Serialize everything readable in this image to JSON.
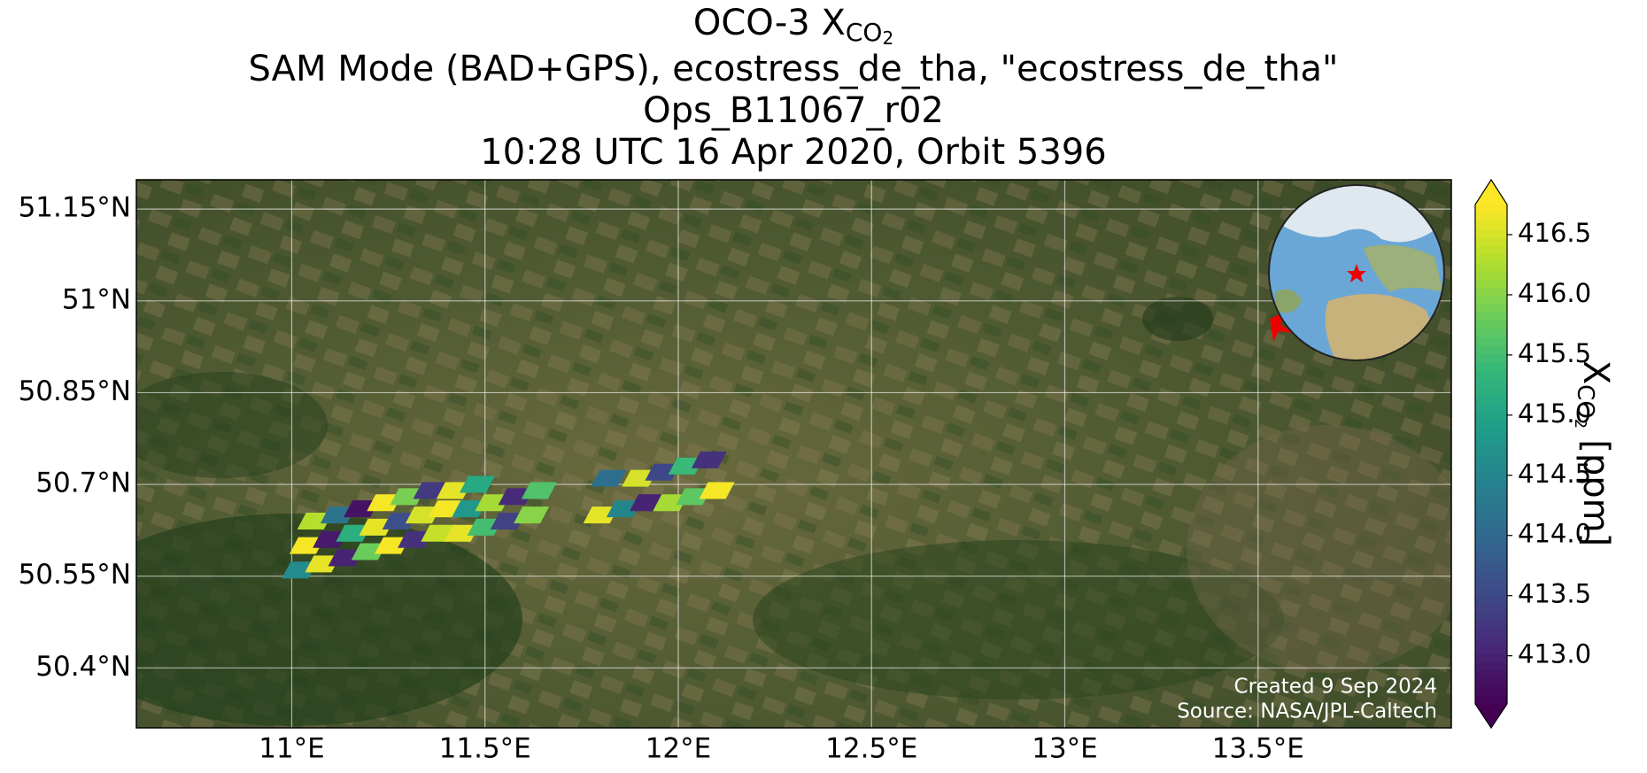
{
  "chart_data": {
    "type": "swath-map",
    "title": {
      "text": "OCO-3 X",
      "subscript": "CO",
      "subsubscript": "2"
    },
    "subtitle_lines": [
      "SAM Mode (BAD+GPS), ecostress_de_tha, \"ecostress_de_tha\"",
      "Ops_B11067_r02",
      "10:28 UTC 16 Apr 2020, Orbit 5396"
    ],
    "xlim": [
      10.598,
      14.0
    ],
    "ylim": [
      50.302,
      51.198
    ],
    "xticks": [
      {
        "value": 11.0,
        "label": "11°E"
      },
      {
        "value": 11.5,
        "label": "11.5°E"
      },
      {
        "value": 12.0,
        "label": "12°E"
      },
      {
        "value": 12.5,
        "label": "12.5°E"
      },
      {
        "value": 13.0,
        "label": "13°E"
      },
      {
        "value": 13.5,
        "label": "13.5°E"
      }
    ],
    "yticks": [
      {
        "value": 51.15,
        "label": "51.15°N"
      },
      {
        "value": 51.0,
        "label": "51°N"
      },
      {
        "value": 50.85,
        "label": "50.85°N"
      },
      {
        "value": 50.7,
        "label": "50.7°N"
      },
      {
        "value": 50.55,
        "label": "50.55°N"
      },
      {
        "value": 50.4,
        "label": "50.4°N"
      }
    ],
    "grid": true,
    "x": [
      11.02,
      11.08,
      11.14,
      11.2,
      11.26,
      11.32,
      11.38,
      11.44,
      11.5,
      11.56,
      11.62,
      11.04,
      11.1,
      11.16,
      11.22,
      11.28,
      11.34,
      11.4,
      11.46,
      11.52,
      11.58,
      11.64,
      11.06,
      11.12,
      11.18,
      11.24,
      11.3,
      11.36,
      11.42,
      11.48,
      11.8,
      11.86,
      11.92,
      11.98,
      12.04,
      12.1,
      11.82,
      11.9,
      11.96,
      12.02,
      12.08
    ],
    "y": [
      50.56,
      50.57,
      50.58,
      50.59,
      50.6,
      50.61,
      50.62,
      50.62,
      50.63,
      50.64,
      50.65,
      50.6,
      50.61,
      50.62,
      50.63,
      50.64,
      50.65,
      50.66,
      50.66,
      50.67,
      50.68,
      50.69,
      50.64,
      50.65,
      50.66,
      50.67,
      50.68,
      50.69,
      50.69,
      50.7,
      50.65,
      50.66,
      50.67,
      50.67,
      50.68,
      50.69,
      50.71,
      50.71,
      50.72,
      50.73,
      50.74
    ],
    "values": [
      414.6,
      416.6,
      413.0,
      415.8,
      416.7,
      413.2,
      416.4,
      416.6,
      415.5,
      413.4,
      416.0,
      416.7,
      412.9,
      415.2,
      416.6,
      413.6,
      416.5,
      416.7,
      414.8,
      416.2,
      413.1,
      415.6,
      416.3,
      414.2,
      412.8,
      416.7,
      415.9,
      413.3,
      416.6,
      415.1,
      416.6,
      414.5,
      413.0,
      416.2,
      415.7,
      416.7,
      414.1,
      416.5,
      413.5,
      415.4,
      413.2
    ],
    "colorbar": {
      "label": "X",
      "label_subscript": "CO",
      "label_subsubscript": "2",
      "label_unit": "[ppm]",
      "clim": [
        412.6,
        416.75
      ],
      "ticks": [
        {
          "value": 413.0,
          "label": "413.0"
        },
        {
          "value": 413.5,
          "label": "413.5"
        },
        {
          "value": 414.0,
          "label": "414.0"
        },
        {
          "value": 414.5,
          "label": "414.5"
        },
        {
          "value": 415.0,
          "label": "415.0"
        },
        {
          "value": 415.5,
          "label": "415.5"
        },
        {
          "value": 416.0,
          "label": "416.0"
        },
        {
          "value": 416.5,
          "label": "416.5"
        }
      ]
    },
    "credits": [
      "Created 9 Sep 2024",
      "Source: NASA/JPL-Caltech"
    ]
  }
}
